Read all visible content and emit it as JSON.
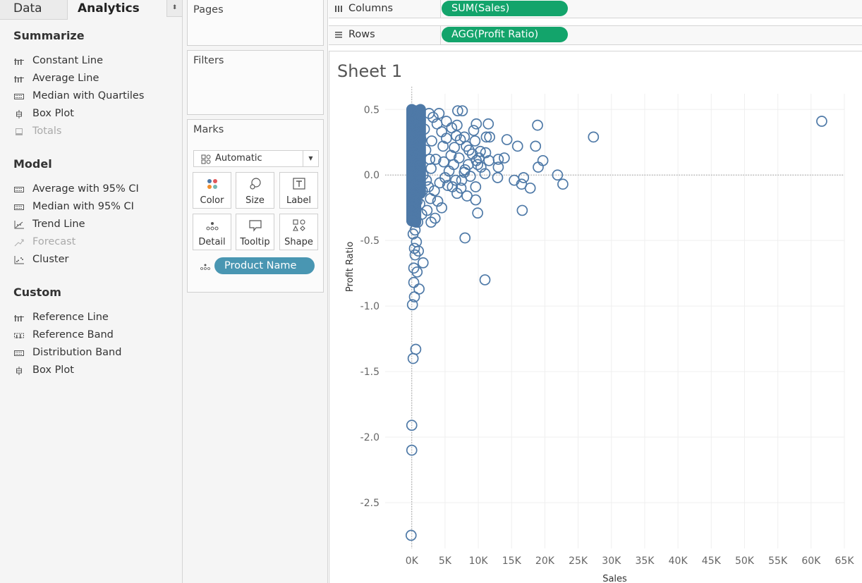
{
  "tabs": {
    "data": "Data",
    "analytics": "Analytics",
    "toggle": "⬍"
  },
  "analytics": {
    "sections": [
      {
        "title": "Summarize",
        "items": [
          {
            "label": "Constant Line",
            "icon": "reference-line-icon",
            "enabled": true
          },
          {
            "label": "Average Line",
            "icon": "reference-line-icon",
            "enabled": true
          },
          {
            "label": "Median with Quartiles",
            "icon": "distribution-band-icon",
            "enabled": true
          },
          {
            "label": "Box Plot",
            "icon": "box-plot-icon",
            "enabled": true
          },
          {
            "label": "Totals",
            "icon": "totals-icon",
            "enabled": false
          }
        ]
      },
      {
        "title": "Model",
        "items": [
          {
            "label": "Average with 95% CI",
            "icon": "distribution-band-icon",
            "enabled": true
          },
          {
            "label": "Median with 95% CI",
            "icon": "distribution-band-icon",
            "enabled": true
          },
          {
            "label": "Trend Line",
            "icon": "trend-line-icon",
            "enabled": true
          },
          {
            "label": "Forecast",
            "icon": "forecast-icon",
            "enabled": false
          },
          {
            "label": "Cluster",
            "icon": "cluster-icon",
            "enabled": true
          }
        ]
      },
      {
        "title": "Custom",
        "items": [
          {
            "label": "Reference Line",
            "icon": "reference-line-icon",
            "enabled": true
          },
          {
            "label": "Reference Band",
            "icon": "reference-band-icon",
            "enabled": true
          },
          {
            "label": "Distribution Band",
            "icon": "distribution-band-icon",
            "enabled": true
          },
          {
            "label": "Box Plot",
            "icon": "box-plot-icon",
            "enabled": true
          }
        ]
      }
    ]
  },
  "shelves": {
    "pages": "Pages",
    "filters": "Filters",
    "marks": "Marks",
    "columns_label": "Columns",
    "rows_label": "Rows",
    "columns_pill": "SUM(Sales)",
    "rows_pill": "AGG(Profit Ratio)"
  },
  "marks": {
    "type": "Automatic",
    "buttons": [
      {
        "label": "Color",
        "icon": "color-icon"
      },
      {
        "label": "Size",
        "icon": "size-icon"
      },
      {
        "label": "Label",
        "icon": "label-icon"
      },
      {
        "label": "Detail",
        "icon": "detail-icon"
      },
      {
        "label": "Tooltip",
        "icon": "tooltip-icon"
      },
      {
        "label": "Shape",
        "icon": "shape-icon"
      }
    ],
    "detail_pill": "Product Name"
  },
  "colors": {
    "mark": "#4e79a7",
    "pill_green": "#13a46b",
    "pill_blue": "#4996b2"
  },
  "sheet": {
    "title": "Sheet 1"
  },
  "chart_data": {
    "type": "scatter",
    "mark": "open-circle",
    "xlabel": "Sales",
    "ylabel": "Profit Ratio",
    "xlim": [
      -4000,
      65000
    ],
    "ylim": [
      -2.85,
      0.62
    ],
    "x_ticks": [
      0,
      5000,
      10000,
      15000,
      20000,
      25000,
      30000,
      35000,
      40000,
      45000,
      50000,
      55000,
      60000,
      65000
    ],
    "x_tick_labels": [
      "0K",
      "5K",
      "10K",
      "15K",
      "20K",
      "25K",
      "30K",
      "35K",
      "40K",
      "45K",
      "50K",
      "55K",
      "60K",
      "65K"
    ],
    "y_ticks": [
      0.5,
      0.0,
      -0.5,
      -1.0,
      -1.5,
      -2.0,
      -2.5
    ],
    "y_tick_labels": [
      "0.5",
      "0.0",
      "-0.5",
      "-1.0",
      "-1.5",
      "-2.0",
      "-2.5"
    ],
    "grid": true,
    "zero_lines": true,
    "points": [
      [
        61600,
        0.41
      ],
      [
        27300,
        0.29
      ],
      [
        18900,
        0.38
      ],
      [
        18600,
        0.22
      ],
      [
        19000,
        0.06
      ],
      [
        19700,
        0.11
      ],
      [
        21900,
        0.0
      ],
      [
        22700,
        -0.07
      ],
      [
        16800,
        -0.02
      ],
      [
        16500,
        -0.07
      ],
      [
        17800,
        -0.1
      ],
      [
        16600,
        -0.27
      ],
      [
        15900,
        0.22
      ],
      [
        14300,
        0.27
      ],
      [
        15400,
        -0.04
      ],
      [
        13900,
        0.13
      ],
      [
        13000,
        0.12
      ],
      [
        12900,
        -0.02
      ],
      [
        13000,
        0.06
      ],
      [
        11500,
        0.39
      ],
      [
        11200,
        0.29
      ],
      [
        11700,
        0.29
      ],
      [
        11100,
        0.17
      ],
      [
        11600,
        0.11
      ],
      [
        11000,
        0.01
      ],
      [
        10400,
        0.06
      ],
      [
        9700,
        0.39
      ],
      [
        9300,
        0.34
      ],
      [
        9500,
        0.26
      ],
      [
        7600,
        0.49
      ],
      [
        6900,
        0.49
      ],
      [
        6800,
        0.38
      ],
      [
        6700,
        0.3
      ],
      [
        7300,
        0.27
      ],
      [
        7900,
        0.29
      ],
      [
        8200,
        0.22
      ],
      [
        8600,
        0.19
      ],
      [
        9100,
        0.16
      ],
      [
        9700,
        0.11
      ],
      [
        9900,
        0.08
      ],
      [
        10300,
        0.18
      ],
      [
        10100,
        0.13
      ],
      [
        8500,
        0.08
      ],
      [
        7900,
        0.02
      ],
      [
        7500,
        -0.04
      ],
      [
        8000,
        0.04
      ],
      [
        8800,
        -0.01
      ],
      [
        9600,
        -0.09
      ],
      [
        9600,
        -0.19
      ],
      [
        9900,
        -0.29
      ],
      [
        8300,
        -0.16
      ],
      [
        7400,
        -0.1
      ],
      [
        6800,
        -0.14
      ],
      [
        6100,
        -0.09
      ],
      [
        4500,
        -0.25
      ],
      [
        3500,
        -0.33
      ],
      [
        2900,
        -0.36
      ],
      [
        8000,
        -0.48
      ],
      [
        11000,
        -0.8
      ],
      [
        1700,
        -0.67
      ],
      [
        1000,
        -0.58
      ],
      [
        500,
        -0.61
      ],
      [
        300,
        -0.71
      ],
      [
        800,
        -0.74
      ],
      [
        300,
        -0.82
      ],
      [
        1100,
        -0.87
      ],
      [
        400,
        -0.93
      ],
      [
        100,
        -0.99
      ],
      [
        600,
        -1.33
      ],
      [
        200,
        -1.4
      ],
      [
        0,
        -1.91
      ],
      [
        0,
        -2.1
      ],
      [
        -100,
        -2.75
      ],
      [
        200,
        -0.45
      ],
      [
        500,
        -0.42
      ],
      [
        900,
        -0.36
      ],
      [
        1500,
        -0.3
      ],
      [
        2300,
        -0.27
      ],
      [
        1200,
        -0.22
      ],
      [
        2800,
        -0.18
      ],
      [
        3400,
        -0.12
      ],
      [
        4200,
        -0.06
      ],
      [
        5000,
        -0.02
      ],
      [
        5600,
        0.03
      ],
      [
        6300,
        0.08
      ],
      [
        5900,
        0.15
      ],
      [
        6400,
        0.21
      ],
      [
        5200,
        0.28
      ],
      [
        4500,
        0.33
      ],
      [
        3800,
        0.39
      ],
      [
        3200,
        0.44
      ],
      [
        2600,
        0.47
      ],
      [
        4100,
        0.47
      ],
      [
        5200,
        0.41
      ],
      [
        6000,
        0.36
      ],
      [
        4700,
        0.22
      ],
      [
        3600,
        0.12
      ],
      [
        2900,
        0.05
      ],
      [
        2200,
        -0.04
      ],
      [
        1600,
        -0.12
      ],
      [
        800,
        -0.2
      ],
      [
        300,
        -0.28
      ],
      [
        1900,
        0.35
      ],
      [
        1300,
        0.42
      ],
      [
        700,
        0.48
      ],
      [
        2100,
        0.19
      ],
      [
        1000,
        0.06
      ],
      [
        400,
        -0.08
      ],
      [
        2500,
        -0.09
      ],
      [
        3000,
        0.26
      ],
      [
        4800,
        0.1
      ],
      [
        5400,
        -0.08
      ],
      [
        6600,
        -0.04
      ],
      [
        7100,
        0.13
      ],
      [
        3900,
        -0.2
      ],
      [
        2700,
        0.12
      ],
      [
        1400,
        0.27
      ],
      [
        600,
        0.38
      ],
      [
        200,
        0.12
      ],
      [
        100,
        -0.16
      ],
      [
        1100,
        -0.05
      ],
      [
        300,
        0.31
      ],
      [
        900,
        0.17
      ],
      [
        1700,
        0.0
      ],
      [
        500,
        -0.33
      ],
      [
        700,
        -0.51
      ],
      [
        400,
        -0.56
      ]
    ]
  }
}
